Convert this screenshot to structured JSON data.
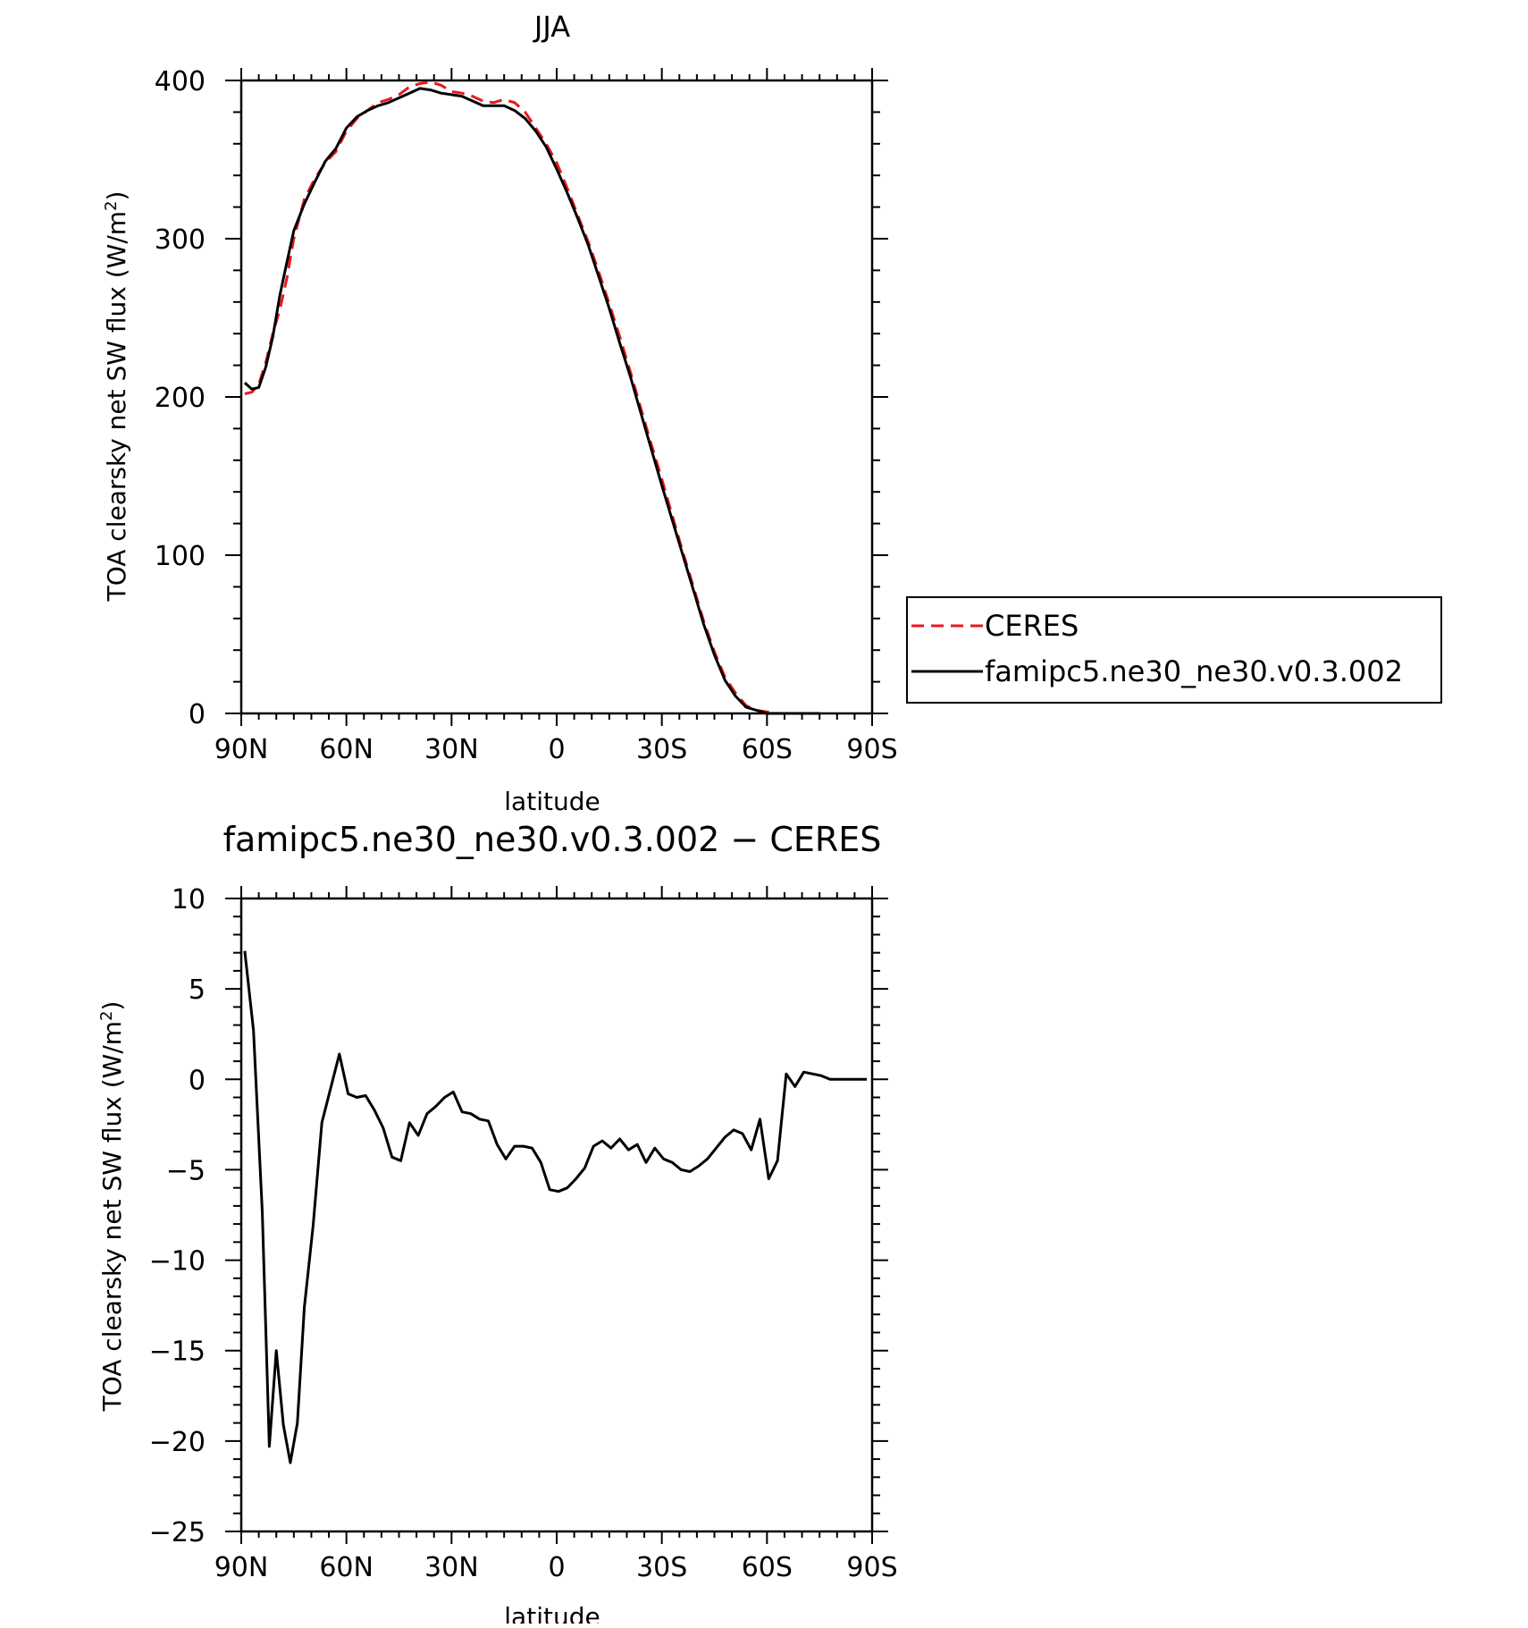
{
  "chart_data": [
    {
      "type": "line",
      "title": "JJA",
      "xlabel": "latitude",
      "ylabel": "TOA clearsky net SW flux (W/m",
      "ylabel_sup": "2",
      "ylabel_close": ")",
      "xlim": [
        90,
        -90
      ],
      "ylim": [
        0,
        400
      ],
      "xticks": [
        {
          "value": 90,
          "label": "90N"
        },
        {
          "value": 60,
          "label": "60N"
        },
        {
          "value": 30,
          "label": "30N"
        },
        {
          "value": 0,
          "label": "0"
        },
        {
          "value": -30,
          "label": "30S"
        },
        {
          "value": -60,
          "label": "60S"
        },
        {
          "value": -90,
          "label": "90S"
        }
      ],
      "yticks": [
        0,
        100,
        200,
        300,
        400
      ],
      "grid": false,
      "legend": {
        "placement": "outside-right"
      },
      "series": [
        {
          "name": "CERES",
          "color": "#e8191c",
          "dash": "dashed",
          "x": [
            89,
            87,
            85,
            83,
            81,
            79,
            77,
            75,
            72,
            69,
            66,
            63,
            60,
            57,
            54,
            51,
            48,
            45,
            42,
            39,
            36,
            33,
            30,
            27,
            24,
            21,
            18,
            15,
            12,
            9,
            6,
            3,
            0,
            -3,
            -6,
            -9,
            -12,
            -15,
            -18,
            -21,
            -24,
            -27,
            -30,
            -33,
            -36,
            -39,
            -42,
            -45,
            -48,
            -51,
            -54,
            -57,
            -60,
            -63,
            -66,
            -69,
            -72,
            -75
          ],
          "values": [
            202,
            203,
            208,
            222,
            240,
            255,
            275,
            300,
            325,
            338,
            348,
            355,
            368,
            376,
            381,
            386,
            388,
            391,
            396,
            398,
            399,
            397,
            393,
            392,
            390,
            387,
            386,
            388,
            386,
            380,
            370,
            360,
            348,
            332,
            315,
            298,
            279,
            259,
            238,
            216,
            193,
            170,
            148,
            125,
            102,
            80,
            58,
            39,
            23,
            13,
            5,
            2,
            1,
            0,
            0,
            0,
            0,
            0
          ]
        },
        {
          "name": "famipc5.ne30_ne30.v0.3.002",
          "color": "#000000",
          "dash": "solid",
          "x": [
            89,
            87,
            85,
            83,
            81,
            79,
            77,
            75,
            72,
            69,
            66,
            63,
            60,
            57,
            54,
            51,
            48,
            45,
            42,
            39,
            36,
            33,
            30,
            27,
            24,
            21,
            18,
            15,
            12,
            9,
            6,
            3,
            0,
            -3,
            -6,
            -9,
            -12,
            -15,
            -18,
            -21,
            -24,
            -27,
            -30,
            -33,
            -36,
            -39,
            -42,
            -45,
            -48,
            -51,
            -54,
            -57,
            -60,
            -63,
            -66,
            -69,
            -72,
            -75
          ],
          "values": [
            209,
            205,
            206,
            219,
            238,
            264,
            285,
            305,
            322,
            336,
            349,
            357,
            370,
            377,
            381,
            384,
            386,
            389,
            392,
            395,
            394,
            392,
            391,
            390,
            387,
            384,
            384,
            384,
            381,
            376,
            368,
            358,
            344,
            329,
            313,
            296,
            276,
            256,
            234,
            213,
            190,
            167,
            144,
            122,
            100,
            78,
            56,
            37,
            21,
            11,
            4,
            2,
            0,
            0,
            0,
            0,
            0,
            0
          ]
        }
      ]
    },
    {
      "type": "line",
      "title": "famipc5.ne30_ne30.v0.3.002 − CERES",
      "xlabel": "latitude",
      "ylabel": "TOA clearsky net SW flux (W/m",
      "ylabel_sup": "2",
      "ylabel_close": ")",
      "xlim": [
        90,
        -90
      ],
      "ylim": [
        -25,
        10
      ],
      "xticks": [
        {
          "value": 90,
          "label": "90N"
        },
        {
          "value": 60,
          "label": "60N"
        },
        {
          "value": 30,
          "label": "30N"
        },
        {
          "value": 0,
          "label": "0"
        },
        {
          "value": -30,
          "label": "30S"
        },
        {
          "value": -60,
          "label": "60S"
        },
        {
          "value": -90,
          "label": "90S"
        }
      ],
      "yticks": [
        {
          "value": 10,
          "label": "10"
        },
        {
          "value": 5,
          "label": "5"
        },
        {
          "value": 0,
          "label": "0"
        },
        {
          "value": -5,
          "label": "−5"
        },
        {
          "value": -10,
          "label": "−10"
        },
        {
          "value": -15,
          "label": "−15"
        },
        {
          "value": -20,
          "label": "−20"
        },
        {
          "value": -25,
          "label": "−25"
        }
      ],
      "grid": false,
      "series": [
        {
          "color": "#000000",
          "dash": "solid",
          "x": [
            89,
            86.5,
            84,
            82,
            80,
            78,
            76,
            74,
            72,
            69.5,
            67,
            64.5,
            62,
            59.5,
            57,
            54.5,
            52,
            49.5,
            47,
            44.5,
            42,
            39.5,
            37,
            34.5,
            32,
            29.5,
            27,
            24.5,
            22,
            19.5,
            17,
            14.5,
            12,
            9.5,
            7,
            4.5,
            2,
            -0.5,
            -3,
            -5.5,
            -8,
            -10.5,
            -13,
            -15.5,
            -18,
            -20.5,
            -23,
            -25.5,
            -28,
            -30.5,
            -33,
            -35.5,
            -38,
            -40.5,
            -43,
            -45.5,
            -48,
            -50.5,
            -53,
            -55.5,
            -58,
            -60.5,
            -63,
            -65.5,
            -68,
            -70.5,
            -73,
            -75.5,
            -78,
            -80.5,
            -83,
            -85.5,
            -88.5
          ],
          "values": [
            7.1,
            2.7,
            -7.3,
            -20.3,
            -15.0,
            -19.1,
            -21.2,
            -19.0,
            -12.6,
            -8.1,
            -2.4,
            -0.5,
            1.4,
            -0.8,
            -1.0,
            -0.9,
            -1.7,
            -2.7,
            -4.3,
            -4.5,
            -2.4,
            -3.1,
            -1.9,
            -1.5,
            -1.0,
            -0.7,
            -1.8,
            -1.9,
            -2.2,
            -2.3,
            -3.6,
            -4.4,
            -3.7,
            -3.7,
            -3.8,
            -4.6,
            -6.1,
            -6.2,
            -6.0,
            -5.5,
            -4.9,
            -3.7,
            -3.4,
            -3.8,
            -3.3,
            -3.9,
            -3.6,
            -4.6,
            -3.8,
            -4.4,
            -4.6,
            -5.0,
            -5.1,
            -4.8,
            -4.4,
            -3.8,
            -3.2,
            -2.8,
            -3.0,
            -3.9,
            -2.2,
            -5.5,
            -4.5,
            0.3,
            -0.4,
            0.4,
            0.3,
            0.2,
            0.0,
            0.0,
            0.0,
            0.0,
            0.0
          ]
        }
      ]
    }
  ]
}
